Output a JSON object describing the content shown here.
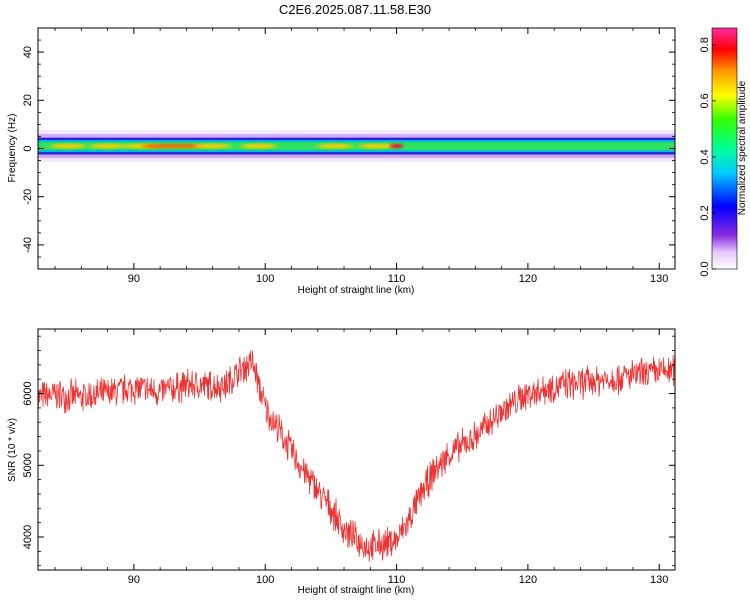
{
  "title": "C2E6.2025.087.11.58.E30",
  "colors": {
    "snr_line": "#ee3333",
    "background": "#ffffff"
  },
  "chart_data": [
    {
      "type": "heatmap",
      "xlabel": "Height of straight line (km)",
      "ylabel": "Frequency (Hz)",
      "xlim": [
        82.7,
        131.2
      ],
      "ylim": [
        -50,
        50
      ],
      "xticks": [
        90,
        100,
        110,
        120,
        130
      ],
      "yticks": [
        -40,
        -20,
        0,
        20,
        40
      ],
      "colorbar": {
        "label": "Normalized spectral amplitude",
        "ticks": [
          0.0,
          0.2,
          0.4,
          0.6,
          0.8
        ],
        "range": [
          0,
          0.86
        ],
        "colormap": "hsv-like: white, violet, blue, cyan, green, yellow, orange, red, magenta"
      },
      "band": {
        "center_hz": 1,
        "core_halfwidth_hz": 2.5,
        "halo_halfwidth_hz": 5
      },
      "hotspots": [
        {
          "x": 85,
          "amplitude": 0.7
        },
        {
          "x": 88,
          "amplitude": 0.72
        },
        {
          "x": 90.5,
          "amplitude": 0.74
        },
        {
          "x": 92,
          "amplitude": 0.78
        },
        {
          "x": 94,
          "amplitude": 0.75
        },
        {
          "x": 96,
          "amplitude": 0.72
        },
        {
          "x": 99.5,
          "amplitude": 0.7
        },
        {
          "x": 105.3,
          "amplitude": 0.7
        },
        {
          "x": 108.5,
          "amplitude": 0.7
        },
        {
          "x": 110,
          "amplitude": 0.86
        }
      ]
    },
    {
      "type": "line",
      "xlabel": "Height of straight line (km)",
      "ylabel": "SNR (10 * v/v)",
      "xlim": [
        82.7,
        131.2
      ],
      "ylim": [
        3540,
        6900
      ],
      "xticks": [
        90,
        100,
        110,
        120,
        130
      ],
      "yticks": [
        4000,
        5000,
        6000
      ],
      "series": [
        {
          "x": [
            82.7,
            84,
            86,
            88,
            90,
            92,
            94,
            96,
            97,
            98,
            99,
            100,
            101,
            102,
            103,
            104,
            105,
            106,
            107,
            108,
            109,
            110,
            111,
            112,
            113,
            114,
            116,
            118,
            120,
            122,
            124,
            126,
            128,
            130,
            131.2
          ],
          "y": [
            5950,
            5980,
            5950,
            6000,
            6080,
            6020,
            6120,
            6100,
            6120,
            6300,
            6450,
            5800,
            5500,
            5200,
            4900,
            4650,
            4400,
            4100,
            3950,
            3850,
            3900,
            3950,
            4250,
            4650,
            4950,
            5150,
            5400,
            5750,
            6000,
            6100,
            6150,
            6200,
            6250,
            6300,
            6330
          ]
        }
      ]
    }
  ]
}
